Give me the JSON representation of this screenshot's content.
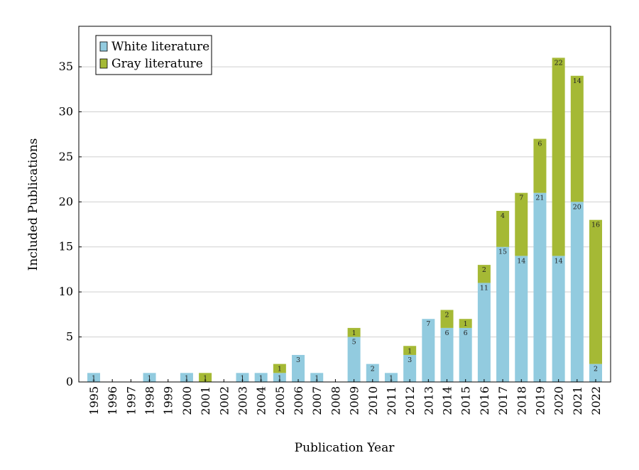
{
  "chart_data": {
    "type": "bar",
    "stacked": true,
    "categories": [
      "1995",
      "1996",
      "1997",
      "1998",
      "1999",
      "2000",
      "2001",
      "2002",
      "2003",
      "2004",
      "2005",
      "2006",
      "2007",
      "2008",
      "2009",
      "2010",
      "2011",
      "2012",
      "2013",
      "2014",
      "2015",
      "2016",
      "2017",
      "2018",
      "2019",
      "2020",
      "2021",
      "2022"
    ],
    "series": [
      {
        "name": "White literature",
        "color": "#92cbdf",
        "values": [
          1,
          0,
          0,
          1,
          0,
          1,
          0,
          0,
          1,
          1,
          1,
          3,
          1,
          0,
          5,
          2,
          1,
          3,
          7,
          6,
          6,
          11,
          15,
          14,
          21,
          14,
          20,
          2
        ]
      },
      {
        "name": "Gray literature",
        "color": "#a5b935",
        "values": [
          0,
          0,
          0,
          0,
          0,
          0,
          1,
          0,
          0,
          0,
          1,
          0,
          0,
          0,
          1,
          0,
          0,
          1,
          0,
          2,
          1,
          2,
          4,
          7,
          6,
          22,
          14,
          16
        ]
      }
    ],
    "title": "",
    "xlabel": "Publication Year",
    "ylabel": "Included Publications",
    "ylim": [
      0,
      39.5
    ],
    "yticks": [
      0,
      5,
      10,
      15,
      20,
      25,
      30,
      35
    ],
    "grid": "horizontal",
    "legend_position": "top-left",
    "bar_labels": true
  }
}
